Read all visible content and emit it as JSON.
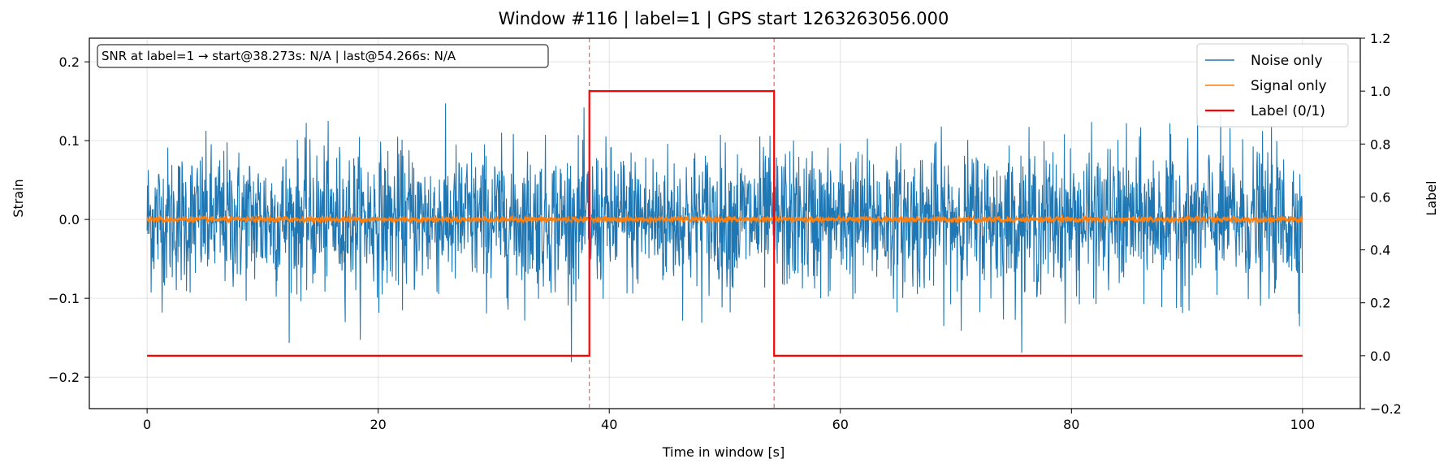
{
  "chart_data": {
    "type": "line",
    "title": "Window #116  |  label=1  |  GPS start 1263263056.000",
    "xlabel": "Time in window [s]",
    "ylabel": "Strain",
    "y2label": "Label",
    "xlim": [
      -5,
      105
    ],
    "ylim": [
      -0.24,
      0.23
    ],
    "y2lim": [
      -0.2,
      1.2
    ],
    "x_ticks": [
      0,
      20,
      40,
      60,
      80,
      100
    ],
    "y_ticks": [
      -0.2,
      -0.1,
      0.0,
      0.1,
      0.2
    ],
    "y2_ticks": [
      -0.2,
      0.0,
      0.2,
      0.4,
      0.6,
      0.8,
      1.0,
      1.2
    ],
    "grid": true,
    "legend_position": "top-right",
    "annotation": "SNR at label=1 → start@38.273s: N/A | last@54.266s: N/A",
    "vlines": [
      38.273,
      54.266
    ],
    "series": [
      {
        "name": "Noise only",
        "color": "#1f77b4",
        "axis": "left",
        "kind": "noise",
        "x_range": [
          0,
          100
        ],
        "typical_amplitude": 0.05,
        "peak_amplitude": 0.2
      },
      {
        "name": "Signal only",
        "color": "#ff7f0e",
        "axis": "left",
        "kind": "noise",
        "x_range": [
          0,
          100
        ],
        "typical_amplitude": 0.002,
        "peak_amplitude": 0.004
      },
      {
        "name": "Label (0/1)",
        "color": "#ff0000",
        "axis": "right",
        "kind": "step",
        "x": [
          0,
          38.273,
          38.273,
          54.266,
          54.266,
          100
        ],
        "y": [
          0,
          0,
          1,
          1,
          0,
          0
        ]
      }
    ]
  }
}
